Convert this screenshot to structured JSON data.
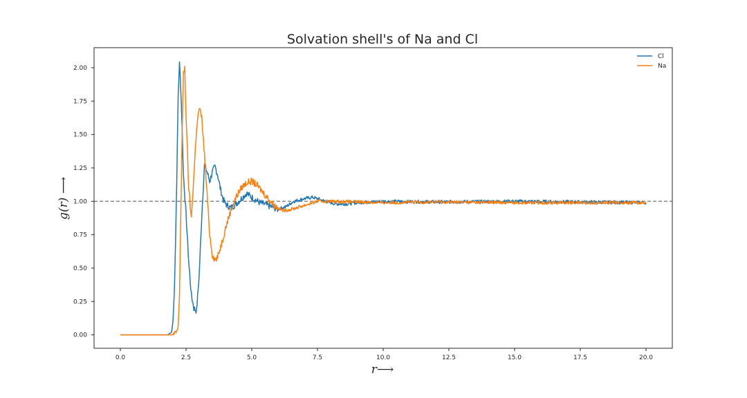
{
  "chart_data": {
    "type": "line",
    "title": "Solvation shell's of Na and Cl",
    "xlabel": "r⟶",
    "ylabel": "g(r) ⟶",
    "xlim": [
      -1.0,
      21.0
    ],
    "ylim": [
      -0.1,
      2.15
    ],
    "xticks": [
      0.0,
      2.5,
      5.0,
      7.5,
      10.0,
      12.5,
      15.0,
      17.5,
      20.0
    ],
    "xtick_labels": [
      "0.0",
      "2.5",
      "5.0",
      "7.5",
      "10.0",
      "12.5",
      "15.0",
      "17.5",
      "20.0"
    ],
    "yticks": [
      0.0,
      0.25,
      0.5,
      0.75,
      1.0,
      1.25,
      1.5,
      1.75,
      2.0
    ],
    "ytick_labels": [
      "0.00",
      "0.25",
      "0.50",
      "0.75",
      "1.00",
      "1.25",
      "1.50",
      "1.75",
      "2.00"
    ],
    "reference_line": {
      "y": 1.0,
      "style": "dashed",
      "color": "#808080"
    },
    "legend": {
      "placement": "top-right"
    },
    "grid": false,
    "series": [
      {
        "name": "Cl",
        "color": "#1f77b4",
        "x": [
          0.0,
          1.8,
          1.95,
          2.0,
          2.05,
          2.1,
          2.15,
          2.2,
          2.25,
          2.3,
          2.35,
          2.4,
          2.5,
          2.6,
          2.7,
          2.8,
          2.9,
          3.0,
          3.1,
          3.2,
          3.3,
          3.4,
          3.5,
          3.6,
          3.7,
          3.8,
          3.9,
          4.0,
          4.2,
          4.4,
          4.6,
          4.8,
          5.0,
          5.3,
          5.6,
          6.0,
          6.3,
          6.6,
          7.0,
          7.3,
          7.5,
          7.8,
          8.2,
          8.6,
          9.0,
          10.0,
          12.0,
          15.0,
          20.0
        ],
        "y": [
          0.0,
          0.0,
          0.02,
          0.1,
          0.3,
          0.7,
          1.2,
          1.8,
          2.03,
          1.85,
          1.55,
          1.2,
          0.9,
          0.55,
          0.3,
          0.2,
          0.18,
          0.45,
          0.9,
          1.27,
          1.22,
          1.15,
          1.22,
          1.26,
          1.2,
          1.1,
          1.02,
          0.98,
          0.95,
          0.98,
          1.02,
          1.06,
          1.03,
          0.99,
          0.97,
          0.94,
          0.96,
          1.0,
          1.02,
          1.03,
          1.02,
          1.0,
          0.98,
          0.98,
          0.99,
          1.0,
          0.995,
          1.0,
          0.99
        ]
      },
      {
        "name": "Na",
        "color": "#ff7f0e",
        "x": [
          0.0,
          2.0,
          2.1,
          2.2,
          2.25,
          2.3,
          2.35,
          2.4,
          2.45,
          2.5,
          2.6,
          2.7,
          2.8,
          2.9,
          3.0,
          3.1,
          3.2,
          3.3,
          3.4,
          3.5,
          3.6,
          3.7,
          3.8,
          3.9,
          4.0,
          4.2,
          4.4,
          4.6,
          4.8,
          5.0,
          5.2,
          5.5,
          5.8,
          6.0,
          6.2,
          6.5,
          7.0,
          7.5,
          8.0,
          9.0,
          10.0,
          12.0,
          15.0,
          20.0
        ],
        "y": [
          0.0,
          0.0,
          0.01,
          0.05,
          0.3,
          0.9,
          1.5,
          1.95,
          2.0,
          1.65,
          1.1,
          0.87,
          1.2,
          1.55,
          1.7,
          1.62,
          1.35,
          1.05,
          0.75,
          0.6,
          0.56,
          0.58,
          0.65,
          0.72,
          0.8,
          0.93,
          1.03,
          1.1,
          1.14,
          1.15,
          1.12,
          1.05,
          0.98,
          0.95,
          0.93,
          0.94,
          0.97,
          1.0,
          1.0,
          0.995,
          0.99,
          0.995,
          0.99,
          0.99
        ]
      }
    ]
  }
}
